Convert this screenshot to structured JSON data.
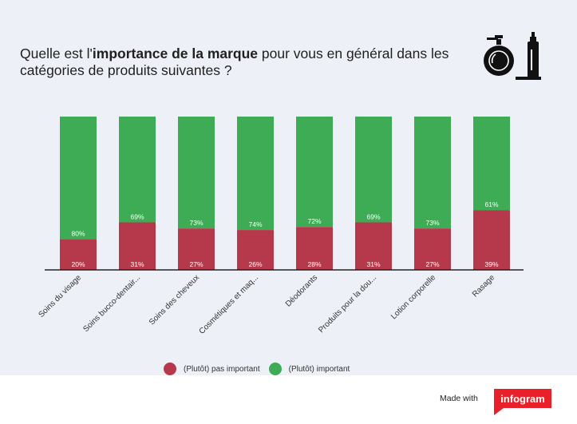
{
  "title": {
    "prefix": "Quelle est l'",
    "bold": "importance de la marque",
    "suffix": " pour vous en général dans les catégories de produits suivantes ?"
  },
  "icon": "perfume-bottle-icon",
  "colors": {
    "not_important": "#b5394a",
    "important": "#3dac55",
    "background": "#eef0f8"
  },
  "chart_data": {
    "type": "bar",
    "stacked": true,
    "categories": [
      "Soins du visage",
      "Soins bucco-dentair...",
      "Soins des cheveux",
      "Cosmétiques et maq...",
      "Déodorants",
      "Produits pour la dou...",
      "Lotion corporelle",
      "Rasage"
    ],
    "series": [
      {
        "name": "(Plutôt) pas important",
        "values": [
          20,
          31,
          27,
          26,
          28,
          31,
          27,
          39
        ],
        "labels": [
          "20%",
          "31%",
          "27%",
          "26%",
          "28%",
          "31%",
          "27%",
          "39%"
        ],
        "color": "#b5394a"
      },
      {
        "name": "(Plutôt) important",
        "values": [
          80,
          69,
          73,
          74,
          72,
          69,
          73,
          61
        ],
        "labels": [
          "80%",
          "69%",
          "73%",
          "74%",
          "72%",
          "69%",
          "73%",
          "61%"
        ],
        "color": "#3dac55"
      }
    ],
    "ylim": [
      0,
      100
    ],
    "grid": false,
    "legend_position": "bottom"
  },
  "footer": {
    "made_with": "Made with",
    "brand": "infogram"
  }
}
